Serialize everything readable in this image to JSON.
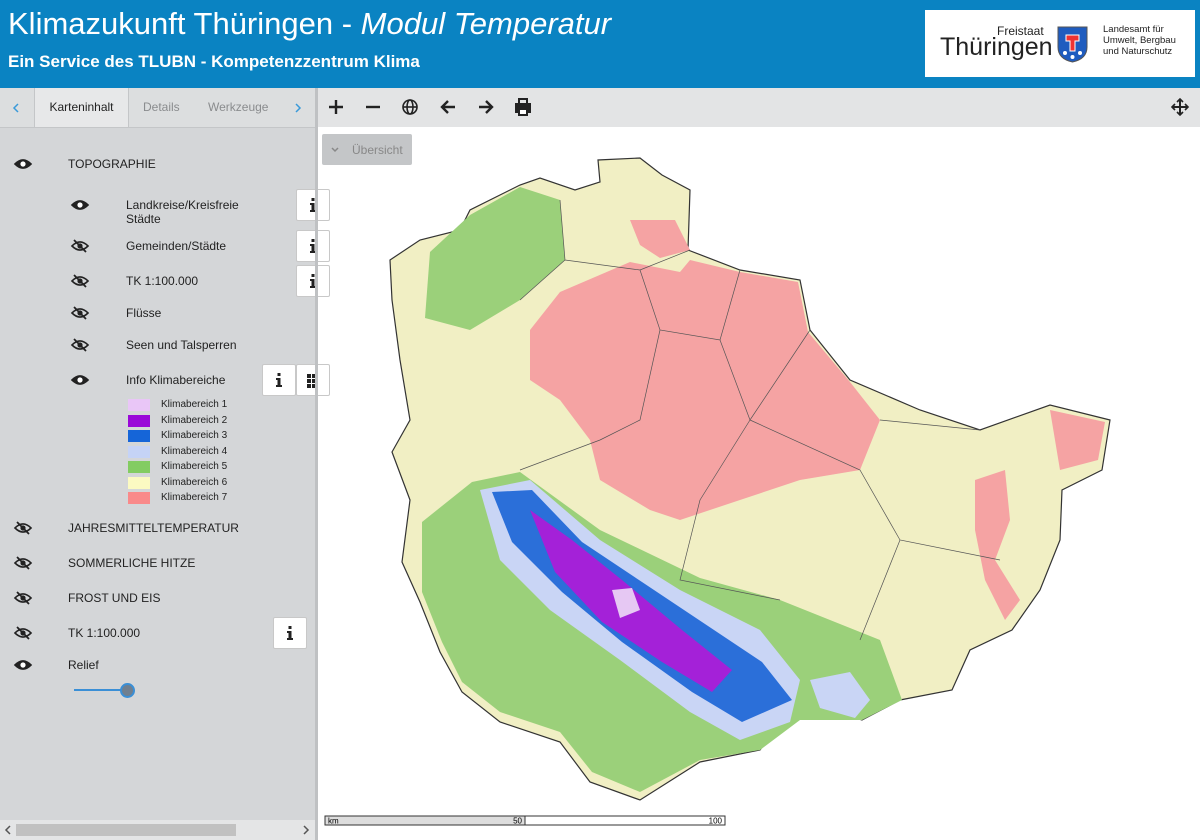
{
  "header": {
    "title": "Klimazukunft Thüringen -",
    "title_module": "Modul Temperatur",
    "subtitle": "Ein Service des TLUBN - Kompetenzzentrum Klima",
    "logo": {
      "state": "Freistaat",
      "name": "Thüringen",
      "agency": [
        "Landesamt für",
        "Umwelt, Bergbau",
        "und Naturschutz"
      ]
    }
  },
  "tabs": [
    "Karteninhalt",
    "Details",
    "Werkzeuge"
  ],
  "active_tab": 0,
  "layers": [
    {
      "label": "TOPOGRAPHIE",
      "visible": true,
      "level": 0
    },
    {
      "label": "Landkreise/Kreisfreie Städte",
      "visible": true,
      "level": 1,
      "info": true
    },
    {
      "label": "Gemeinden/Städte",
      "visible": false,
      "level": 1,
      "info": true
    },
    {
      "label": "TK 1:100.000",
      "visible": false,
      "level": 1,
      "info": true
    },
    {
      "label": "Flüsse",
      "visible": false,
      "level": 1
    },
    {
      "label": "Seen und Talsperren",
      "visible": false,
      "level": 1
    },
    {
      "label": "Info Klimabereiche",
      "visible": true,
      "level": 1,
      "info": true,
      "legend_button": true
    },
    {
      "label": "JAHRESMITTELTEMPERATUR",
      "visible": false,
      "level": 0
    },
    {
      "label": "SOMMERLICHE HITZE",
      "visible": false,
      "level": 0
    },
    {
      "label": "FROST UND EIS",
      "visible": false,
      "level": 0
    },
    {
      "label": "TK 1:100.000",
      "visible": false,
      "level": 0,
      "info": true
    },
    {
      "label": "Relief",
      "visible": true,
      "level": 0,
      "slider": true
    }
  ],
  "legend": {
    "items": [
      {
        "label": "Klimabereich 1",
        "color": "#e9c6f7"
      },
      {
        "label": "Klimabereich 2",
        "color": "#9a08d8"
      },
      {
        "label": "Klimabereich 3",
        "color": "#1565d8"
      },
      {
        "label": "Klimabereich 4",
        "color": "#c5d3f6"
      },
      {
        "label": "Klimabereich 5",
        "color": "#83cc62"
      },
      {
        "label": "Klimabereich 6",
        "color": "#fbfac2"
      },
      {
        "label": "Klimabereich 7",
        "color": "#f98a8a"
      }
    ]
  },
  "map": {
    "overview_button": "Übersicht",
    "scale": {
      "unit": "km",
      "ticks": [
        50,
        100
      ]
    }
  }
}
